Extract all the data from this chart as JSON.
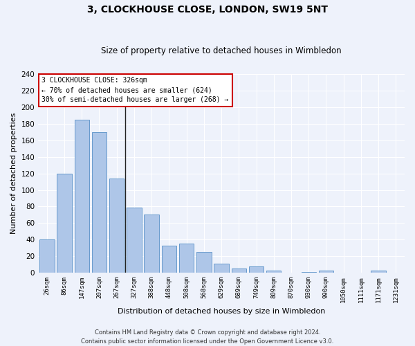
{
  "title": "3, CLOCKHOUSE CLOSE, LONDON, SW19 5NT",
  "subtitle": "Size of property relative to detached houses in Wimbledon",
  "xlabel": "Distribution of detached houses by size in Wimbledon",
  "ylabel": "Number of detached properties",
  "footer1": "Contains HM Land Registry data © Crown copyright and database right 2024.",
  "footer2": "Contains public sector information licensed under the Open Government Licence v3.0.",
  "annotation_line1": "3 CLOCKHOUSE CLOSE: 326sqm",
  "annotation_line2": "← 70% of detached houses are smaller (624)",
  "annotation_line3": "30% of semi-detached houses are larger (268) →",
  "categories": [
    "26sqm",
    "86sqm",
    "147sqm",
    "207sqm",
    "267sqm",
    "327sqm",
    "388sqm",
    "448sqm",
    "508sqm",
    "568sqm",
    "629sqm",
    "689sqm",
    "749sqm",
    "809sqm",
    "870sqm",
    "930sqm",
    "990sqm",
    "1050sqm",
    "1111sqm",
    "1171sqm",
    "1231sqm"
  ],
  "values": [
    40,
    120,
    185,
    170,
    114,
    79,
    70,
    33,
    35,
    25,
    11,
    5,
    8,
    3,
    0,
    1,
    3,
    0,
    0,
    3,
    0
  ],
  "bar_color": "#aec6e8",
  "bar_edge_color": "#6699cc",
  "vline_index": 5,
  "background_color": "#eef2fb",
  "grid_color": "#ffffff",
  "ann_box_color": "#ffffff",
  "ann_box_edge": "#cc0000",
  "ylim": [
    0,
    240
  ],
  "yticks": [
    0,
    20,
    40,
    60,
    80,
    100,
    120,
    140,
    160,
    180,
    200,
    220,
    240
  ]
}
